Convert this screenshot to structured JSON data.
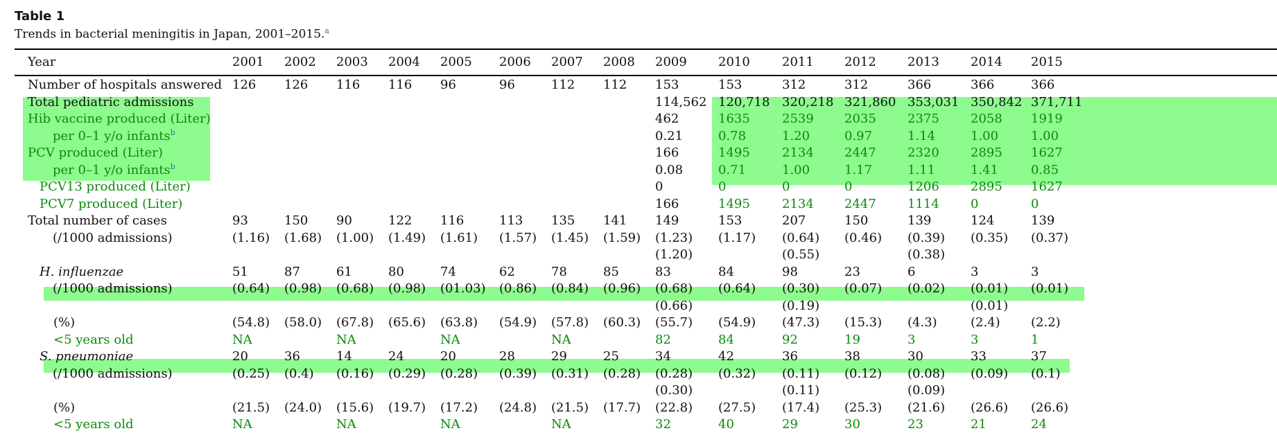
{
  "caption": {
    "label": "Table 1",
    "title": "Trends in bacterial meningitis in Japan, 2001–2015.",
    "title_footnote": "a"
  },
  "colors": {
    "highlight": "#8efb8e",
    "highlight_text": "#0a8a0a",
    "footnote": "#2a6fb0"
  },
  "header": {
    "label": "Year",
    "years": [
      "2001",
      "2002",
      "2003",
      "2004",
      "2005",
      "2006",
      "2007",
      "2008",
      "2009",
      "2010",
      "2011",
      "2012",
      "2013",
      "2014",
      "2015"
    ]
  },
  "rows": [
    {
      "label": "Number of hospitals answered",
      "values": [
        "126",
        "126",
        "116",
        "116",
        "96",
        "96",
        "112",
        "112",
        "153",
        "153",
        "312",
        "312",
        "366",
        "366",
        "366"
      ]
    },
    {
      "label": "Total pediatric admissions",
      "values": [
        "",
        "",
        "",
        "",
        "",
        "",
        "",
        "",
        "114,562",
        "120,718",
        "320,218",
        "321,860",
        "353,031",
        "350,842",
        "371,711"
      ]
    },
    {
      "label": "Hib vaccine produced (Liter)",
      "values": [
        "",
        "",
        "",
        "",
        "",
        "",
        "",
        "",
        "462",
        "1635",
        "2539",
        "2035",
        "2375",
        "2058",
        "1919"
      ]
    },
    {
      "label": "per 0–1 y/o infants",
      "footnote": "b",
      "values": [
        "",
        "",
        "",
        "",
        "",
        "",
        "",
        "",
        "0.21",
        "0.78",
        "1.20",
        "0.97",
        "1.14",
        "1.00",
        "1.00"
      ]
    },
    {
      "label": "PCV produced (Liter)",
      "values": [
        "",
        "",
        "",
        "",
        "",
        "",
        "",
        "",
        "166",
        "1495",
        "2134",
        "2447",
        "2320",
        "2895",
        "1627"
      ]
    },
    {
      "label": "per 0–1 y/o infants",
      "footnote": "b",
      "values": [
        "",
        "",
        "",
        "",
        "",
        "",
        "",
        "",
        "0.08",
        "0.71",
        "1.00",
        "1.17",
        "1.11",
        "1.41",
        "0.85"
      ]
    },
    {
      "label": "PCV13 produced (Liter)",
      "values": [
        "",
        "",
        "",
        "",
        "",
        "",
        "",
        "",
        "0",
        "0",
        "0",
        "0",
        "1206",
        "2895",
        "1627"
      ]
    },
    {
      "label": "PCV7 produced (Liter)",
      "values": [
        "",
        "",
        "",
        "",
        "",
        "",
        "",
        "",
        "166",
        "1495",
        "2134",
        "2447",
        "1114",
        "0",
        "0"
      ]
    },
    {
      "label": "Total number of cases",
      "values": [
        "93",
        "150",
        "90",
        "122",
        "116",
        "113",
        "135",
        "141",
        "149",
        "153",
        "207",
        "150",
        "139",
        "124",
        "139"
      ]
    },
    {
      "label": "(/1000 admissions)",
      "values": [
        "(1.16)",
        "(1.68)",
        "(1.00)",
        "(1.49)",
        "(1.61)",
        "(1.57)",
        "(1.45)",
        "(1.59)",
        "(1.23)",
        "(1.17)",
        "(0.64)",
        "(0.46)",
        "(0.39)",
        "(0.35)",
        "(0.37)"
      ]
    },
    {
      "label": "",
      "values": [
        "",
        "",
        "",
        "",
        "",
        "",
        "",
        "",
        "(1.20)",
        "",
        "(0.55)",
        "",
        "(0.38)",
        "",
        ""
      ]
    },
    {
      "label": "H. influenzae",
      "values": [
        "51",
        "87",
        "61",
        "80",
        "74",
        "62",
        "78",
        "85",
        "83",
        "84",
        "98",
        "23",
        "6",
        "3",
        "3"
      ]
    },
    {
      "label": "(/1000 admissions)",
      "values": [
        "(0.64)",
        "(0.98)",
        "(0.68)",
        "(0.98)",
        "(01.03)",
        "(0.86)",
        "(0.84)",
        "(0.96)",
        "(0.68)",
        "(0.64)",
        "(0.30)",
        "(0.07)",
        "(0.02)",
        "(0.01)",
        "(0.01)"
      ]
    },
    {
      "label": "",
      "values": [
        "",
        "",
        "",
        "",
        "",
        "",
        "",
        "",
        "(0.66)",
        "",
        "(0.19)",
        "",
        "",
        "(0.01)",
        ""
      ]
    },
    {
      "label": "(%)",
      "values": [
        "(54.8)",
        "(58.0)",
        "(67.8)",
        "(65.6)",
        "(63.8)",
        "(54.9)",
        "(57.8)",
        "(60.3)",
        "(55.7)",
        "(54.9)",
        "(47.3)",
        "(15.3)",
        "(4.3)",
        "(2.4)",
        "(2.2)"
      ]
    },
    {
      "label": "<5 years old",
      "values": [
        "NA",
        "",
        "NA",
        "",
        "NA",
        "",
        "NA",
        "",
        "82",
        "84",
        "92",
        "19",
        "3",
        "3",
        "1"
      ]
    },
    {
      "label": "S. pneumoniae",
      "values": [
        "20",
        "36",
        "14",
        "24",
        "20",
        "28",
        "29",
        "25",
        "34",
        "42",
        "36",
        "38",
        "30",
        "33",
        "37"
      ]
    },
    {
      "label": "(/1000 admissions)",
      "values": [
        "(0.25)",
        "(0.4)",
        "(0.16)",
        "(0.29)",
        "(0.28)",
        "(0.39)",
        "(0.31)",
        "(0.28)",
        "(0.28)",
        "(0.32)",
        "(0.11)",
        "(0.12)",
        "(0.08)",
        "(0.09)",
        "(0.1)"
      ]
    },
    {
      "label": "",
      "values": [
        "",
        "",
        "",
        "",
        "",
        "",
        "",
        "",
        "(0.30)",
        "",
        "(0.11)",
        "",
        "(0.09)",
        "",
        ""
      ]
    },
    {
      "label": "(%)",
      "values": [
        "(21.5)",
        "(24.0)",
        "(15.6)",
        "(19.7)",
        "(17.2)",
        "(24.8)",
        "(21.5)",
        "(17.7)",
        "(22.8)",
        "(27.5)",
        "(17.4)",
        "(25.3)",
        "(21.6)",
        "(26.6)",
        "(26.6)"
      ]
    },
    {
      "label": "<5 years old",
      "values": [
        "NA",
        "",
        "NA",
        "",
        "NA",
        "",
        "NA",
        "",
        "32",
        "40",
        "29",
        "30",
        "23",
        "21",
        "24"
      ]
    }
  ]
}
